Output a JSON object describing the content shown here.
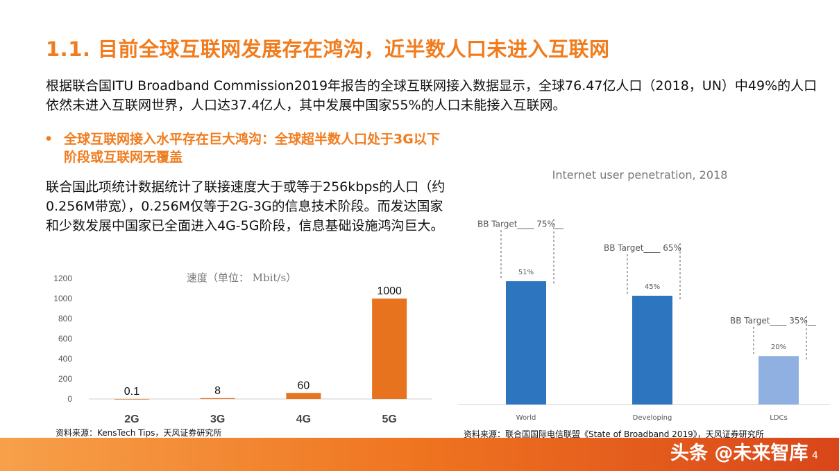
{
  "title": "1.1. 目前全球互联网发展存在鸿沟，近半数人口未进入互联网",
  "intro": "根据联合国ITU Broadband Commission2019年报告的全球互联网接入数据显示，全球76.47亿人口（2018，UN）中49%的人口依然未进入互联网世界，人口达37.4亿人，其中发展中国家55%的人口未能接入互联网。",
  "bullet": "全球互联网接入水平存在巨大鸿沟：全球超半数人口处于3G以下阶段或互联网无覆盖",
  "paragraph": "联合国此项统计数据统计了联接速度大于或等于256kbps的人口（约0.256M带宽），0.256M仅等于2G-3G的信息技术阶段。而发达国家和少数发展中国家已全面进入4G-5G阶段，信息基础设施鸿沟巨大。",
  "chart_data": [
    {
      "type": "bar",
      "title": "速度（单位： Mbit/s）",
      "categories": [
        "2G",
        "3G",
        "4G",
        "5G"
      ],
      "values": [
        0.1,
        8,
        60,
        1000
      ],
      "data_labels": [
        "0.1",
        "8",
        "60",
        "1000"
      ],
      "ylim": [
        0,
        1200
      ],
      "yticks": [
        "0",
        "200",
        "400",
        "600",
        "800",
        "1000",
        "1200"
      ],
      "grid": false,
      "color": "#e8731e"
    },
    {
      "type": "bar",
      "title": "Internet user penetration, 2018",
      "categories": [
        "World",
        "Developing",
        "LDCs"
      ],
      "values": [
        51,
        45,
        20
      ],
      "data_labels": [
        "51%",
        "45%",
        "20%"
      ],
      "targets": [
        75,
        65,
        35
      ],
      "target_labels": [
        "BB Target____ 75%__",
        "BB Target____ 65%",
        "BB Target____ 35%__"
      ],
      "ylim": [
        0,
        100
      ],
      "colors": [
        "#2e75c0",
        "#2e75c0",
        "#8fb0e0"
      ]
    }
  ],
  "source_left": "资料来源：KensTech Tips，天风证券研究所",
  "source_right": "资料来源：联合国国际电信联盟《State of Broadband 2019》，天风证券研究所",
  "watermark": "头条 @未来智库",
  "page_number": "4",
  "colors": {
    "accent": "#f07c1e",
    "bar_orange": "#e8731e",
    "bar_blue": "#2e75c0",
    "bar_light_blue": "#8fb0e0"
  }
}
